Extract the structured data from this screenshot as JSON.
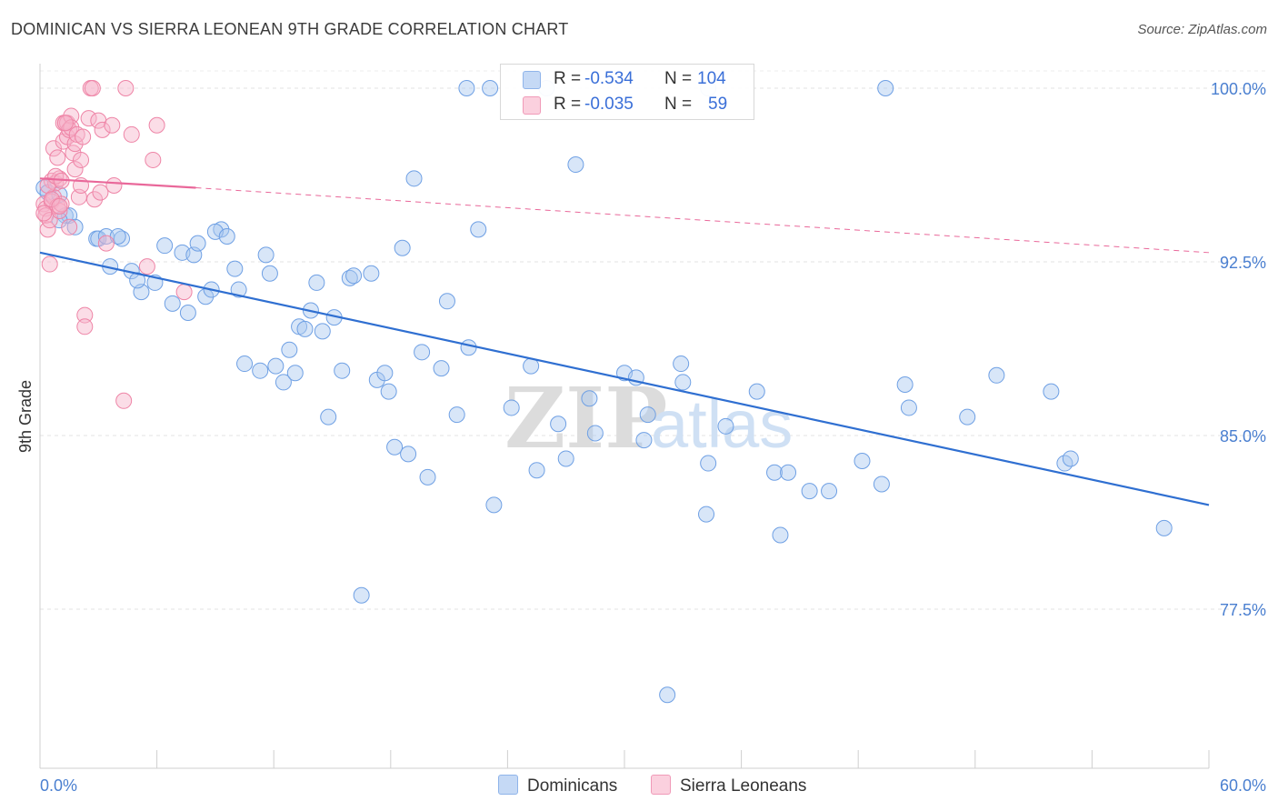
{
  "title": "DOMINICAN VS SIERRA LEONEAN 9TH GRADE CORRELATION CHART",
  "source": "Source: ZipAtlas.com",
  "watermark": {
    "zip": "ZIP",
    "atlas": "atlas"
  },
  "legend": {
    "rows": [
      {
        "r_label": "R =",
        "r_value": "-0.534",
        "n_label": "N =",
        "n_value": "104",
        "color": "#a9c7f0"
      },
      {
        "r_label": "R =",
        "r_value": "-0.035",
        "n_label": "N =",
        "n_value": "59",
        "color": "#f7b3c9"
      }
    ],
    "series": [
      "Dominicans",
      "Sierra Leoneans"
    ]
  },
  "colors": {
    "blue": "#6fa0e4",
    "blue_line": "#2f6fd1",
    "pink": "#ee84a6",
    "pink_line": "#e9689a"
  },
  "chart_data": {
    "type": "scatter",
    "xlabel": "",
    "ylabel": "9th Grade",
    "x_tick_labels": [
      "0.0%",
      "60.0%"
    ],
    "y_tick_labels": [
      "100.0%",
      "92.5%",
      "85.0%",
      "77.5%"
    ],
    "y_ticks": [
      100.0,
      92.5,
      85.0,
      77.5
    ],
    "xlim": [
      0,
      60
    ],
    "ylim": [
      70.0,
      100.5
    ],
    "grid": true,
    "series": [
      {
        "name": "Dominicans",
        "trend": {
          "x": [
            0,
            60
          ],
          "y": [
            92.9,
            82.0
          ],
          "style": "solid"
        },
        "points": [
          [
            0.2,
            95.7
          ],
          [
            0.4,
            95.5
          ],
          [
            1.0,
            95.4
          ],
          [
            1.3,
            94.5
          ],
          [
            1.5,
            94.5
          ],
          [
            1.8,
            94.0
          ],
          [
            1.0,
            94.3
          ],
          [
            2.9,
            93.5
          ],
          [
            3.0,
            93.5
          ],
          [
            3.4,
            93.6
          ],
          [
            3.6,
            92.3
          ],
          [
            4.2,
            93.5
          ],
          [
            4.0,
            93.6
          ],
          [
            4.7,
            92.1
          ],
          [
            5.2,
            91.2
          ],
          [
            5.0,
            91.7
          ],
          [
            5.9,
            91.6
          ],
          [
            6.4,
            93.2
          ],
          [
            6.8,
            90.7
          ],
          [
            7.3,
            92.9
          ],
          [
            7.6,
            90.3
          ],
          [
            7.9,
            92.8
          ],
          [
            8.1,
            93.3
          ],
          [
            8.5,
            91.0
          ],
          [
            8.8,
            91.3
          ],
          [
            9.3,
            93.9
          ],
          [
            9.0,
            93.8
          ],
          [
            9.6,
            93.6
          ],
          [
            10.0,
            92.2
          ],
          [
            10.2,
            91.3
          ],
          [
            10.5,
            88.1
          ],
          [
            11.3,
            87.8
          ],
          [
            11.6,
            92.8
          ],
          [
            11.8,
            92.0
          ],
          [
            12.1,
            88.0
          ],
          [
            12.5,
            87.3
          ],
          [
            12.8,
            88.7
          ],
          [
            13.1,
            87.7
          ],
          [
            13.3,
            89.7
          ],
          [
            13.6,
            89.6
          ],
          [
            13.9,
            90.4
          ],
          [
            14.2,
            91.6
          ],
          [
            14.5,
            89.5
          ],
          [
            14.8,
            85.8
          ],
          [
            15.1,
            90.1
          ],
          [
            15.5,
            87.8
          ],
          [
            15.9,
            91.8
          ],
          [
            16.1,
            91.9
          ],
          [
            16.5,
            78.1
          ],
          [
            17.0,
            92.0
          ],
          [
            17.3,
            87.4
          ],
          [
            17.7,
            87.7
          ],
          [
            17.9,
            86.9
          ],
          [
            18.2,
            84.5
          ],
          [
            18.6,
            93.1
          ],
          [
            18.9,
            84.2
          ],
          [
            19.2,
            96.1
          ],
          [
            19.6,
            88.6
          ],
          [
            19.9,
            83.2
          ],
          [
            20.6,
            87.9
          ],
          [
            20.9,
            90.8
          ],
          [
            21.4,
            85.9
          ],
          [
            22.0,
            88.8
          ],
          [
            22.5,
            93.9
          ],
          [
            23.3,
            82.0
          ],
          [
            24.2,
            86.2
          ],
          [
            25.2,
            88.0
          ],
          [
            25.5,
            83.5
          ],
          [
            26.6,
            85.5
          ],
          [
            27.0,
            84.0
          ],
          [
            27.5,
            96.7
          ],
          [
            28.2,
            86.6
          ],
          [
            28.5,
            85.1
          ],
          [
            30.0,
            87.7
          ],
          [
            31.0,
            84.8
          ],
          [
            30.6,
            87.5
          ],
          [
            31.2,
            85.9
          ],
          [
            33.0,
            87.3
          ],
          [
            32.9,
            88.1
          ],
          [
            34.2,
            81.6
          ],
          [
            34.3,
            83.8
          ],
          [
            35.2,
            85.4
          ],
          [
            36.8,
            86.9
          ],
          [
            37.7,
            83.4
          ],
          [
            38.0,
            80.7
          ],
          [
            39.5,
            82.6
          ],
          [
            38.4,
            83.4
          ],
          [
            40.5,
            82.6
          ],
          [
            42.2,
            83.9
          ],
          [
            43.2,
            82.9
          ],
          [
            44.4,
            87.2
          ],
          [
            44.6,
            86.2
          ],
          [
            47.6,
            85.8
          ],
          [
            49.1,
            87.6
          ],
          [
            51.9,
            86.9
          ],
          [
            52.6,
            83.8
          ],
          [
            52.9,
            84.0
          ],
          [
            57.7,
            81.0
          ],
          [
            32.2,
            73.8
          ],
          [
            23.1,
            100.0
          ],
          [
            21.9,
            100.0
          ],
          [
            26.0,
            100.0
          ],
          [
            34.3,
            100.0
          ],
          [
            43.4,
            100.0
          ]
        ]
      },
      {
        "name": "Sierra Leoneans",
        "trend": {
          "x": [
            0,
            8
          ],
          "y": [
            96.1,
            95.7
          ],
          "style": "solid"
        },
        "trend_ext": {
          "x": [
            8,
            60
          ],
          "y": [
            95.7,
            92.9
          ],
          "style": "dashed"
        },
        "points": [
          [
            0.2,
            95.0
          ],
          [
            0.3,
            94.8
          ],
          [
            0.3,
            94.5
          ],
          [
            0.4,
            93.9
          ],
          [
            0.5,
            94.3
          ],
          [
            0.5,
            92.4
          ],
          [
            0.6,
            95.1
          ],
          [
            0.6,
            96.0
          ],
          [
            0.7,
            97.4
          ],
          [
            0.7,
            95.3
          ],
          [
            0.8,
            95.9
          ],
          [
            0.9,
            94.9
          ],
          [
            0.9,
            97.0
          ],
          [
            1.0,
            96.1
          ],
          [
            1.0,
            94.7
          ],
          [
            1.1,
            95.0
          ],
          [
            1.2,
            98.5
          ],
          [
            1.2,
            97.7
          ],
          [
            1.3,
            98.5
          ],
          [
            1.4,
            98.5
          ],
          [
            1.4,
            97.9
          ],
          [
            1.5,
            98.2
          ],
          [
            1.5,
            94.0
          ],
          [
            1.6,
            98.8
          ],
          [
            1.6,
            98.3
          ],
          [
            1.7,
            97.2
          ],
          [
            1.8,
            97.6
          ],
          [
            1.8,
            96.5
          ],
          [
            1.9,
            98.0
          ],
          [
            2.0,
            95.3
          ],
          [
            2.1,
            96.9
          ],
          [
            2.1,
            95.8
          ],
          [
            2.2,
            97.9
          ],
          [
            2.3,
            90.2
          ],
          [
            2.3,
            89.7
          ],
          [
            2.5,
            98.7
          ],
          [
            2.6,
            100.0
          ],
          [
            2.7,
            100.0
          ],
          [
            2.8,
            95.2
          ],
          [
            3.0,
            98.6
          ],
          [
            3.1,
            95.5
          ],
          [
            3.2,
            98.2
          ],
          [
            3.4,
            93.3
          ],
          [
            3.7,
            98.4
          ],
          [
            3.8,
            95.8
          ],
          [
            4.3,
            86.5
          ],
          [
            4.4,
            100.0
          ],
          [
            4.7,
            98.0
          ],
          [
            5.8,
            96.9
          ],
          [
            6.0,
            98.4
          ],
          [
            5.5,
            92.3
          ],
          [
            7.4,
            91.2
          ],
          [
            0.4,
            95.8
          ],
          [
            0.8,
            96.2
          ],
          [
            1.1,
            96.0
          ],
          [
            1.3,
            98.5
          ],
          [
            0.6,
            95.2
          ],
          [
            1.0,
            94.9
          ],
          [
            0.2,
            94.6
          ]
        ]
      }
    ]
  }
}
